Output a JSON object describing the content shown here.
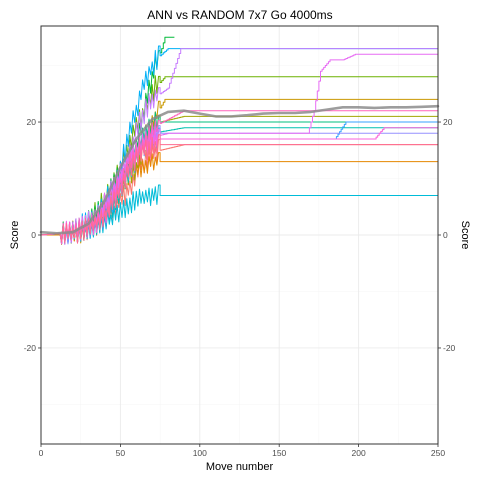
{
  "chart_data": {
    "type": "line",
    "title": "ANN vs RANDOM 7x7 Go 4000ms",
    "xlabel": "Move number",
    "ylabel": "Score",
    "ylabel_right": "Score",
    "xlim": [
      0,
      250
    ],
    "ylim": [
      -37,
      37
    ],
    "x_ticks": [
      0,
      50,
      100,
      150,
      200,
      250
    ],
    "x_tick_labels": [
      "0",
      "50",
      "100",
      "150",
      "200",
      "250"
    ],
    "y_ticks": [
      -20,
      0,
      20
    ],
    "y_tick_labels": [
      "-20",
      "0",
      "20"
    ],
    "grid": true,
    "legend": "none",
    "series": [
      {
        "color": "#F8766D",
        "jitter": 1.4,
        "points": [
          [
            0,
            0
          ],
          [
            15,
            0
          ],
          [
            25,
            0.5
          ],
          [
            35,
            1.5
          ],
          [
            45,
            4
          ],
          [
            55,
            8
          ],
          [
            62,
            12
          ],
          [
            68,
            14
          ],
          [
            75,
            15
          ],
          [
            90,
            16
          ],
          [
            110,
            16
          ],
          [
            150,
            16
          ],
          [
            190,
            16
          ],
          [
            230,
            16
          ],
          [
            250,
            16
          ]
        ]
      },
      {
        "color": "#E58700",
        "jitter": 1.2,
        "points": [
          [
            0,
            0
          ],
          [
            20,
            0
          ],
          [
            35,
            2
          ],
          [
            48,
            7
          ],
          [
            58,
            12
          ],
          [
            63,
            12
          ],
          [
            70,
            13
          ],
          [
            100,
            13
          ],
          [
            150,
            13
          ],
          [
            200,
            13
          ],
          [
            250,
            13
          ]
        ]
      },
      {
        "color": "#C99800",
        "jitter": 1.4,
        "points": [
          [
            0,
            0
          ],
          [
            25,
            0.5
          ],
          [
            38,
            3
          ],
          [
            48,
            8
          ],
          [
            55,
            13
          ],
          [
            62,
            16
          ],
          [
            70,
            20
          ],
          [
            78,
            24
          ],
          [
            85,
            24
          ],
          [
            120,
            24
          ],
          [
            200,
            24
          ],
          [
            250,
            24
          ]
        ]
      },
      {
        "color": "#A3A500",
        "jitter": 1.4,
        "points": [
          [
            0,
            0
          ],
          [
            22,
            0.5
          ],
          [
            35,
            2
          ],
          [
            45,
            6
          ],
          [
            55,
            10
          ],
          [
            60,
            12
          ],
          [
            68,
            18
          ],
          [
            75,
            20
          ],
          [
            90,
            21
          ],
          [
            150,
            21
          ],
          [
            200,
            21
          ],
          [
            250,
            21
          ]
        ]
      },
      {
        "color": "#6BB100",
        "jitter": 1.5,
        "points": [
          [
            0,
            0
          ],
          [
            18,
            0.5
          ],
          [
            30,
            2
          ],
          [
            40,
            6
          ],
          [
            50,
            12
          ],
          [
            58,
            18
          ],
          [
            65,
            22
          ],
          [
            72,
            26
          ],
          [
            78,
            28
          ],
          [
            95,
            28
          ],
          [
            150,
            28
          ],
          [
            200,
            28
          ],
          [
            250,
            28
          ]
        ]
      },
      {
        "color": "#00BA38",
        "jitter": 1.4,
        "points": [
          [
            0,
            0
          ],
          [
            20,
            0.5
          ],
          [
            32,
            3
          ],
          [
            42,
            7
          ],
          [
            52,
            12
          ],
          [
            60,
            16
          ],
          [
            65,
            22
          ],
          [
            72,
            30
          ],
          [
            76,
            33
          ],
          [
            78,
            35
          ],
          [
            84,
            35
          ]
        ]
      },
      {
        "color": "#00BF7D",
        "jitter": 1.3,
        "points": [
          [
            0,
            0
          ],
          [
            25,
            0.5
          ],
          [
            40,
            3
          ],
          [
            50,
            8
          ],
          [
            58,
            14
          ],
          [
            65,
            18
          ],
          [
            72,
            20
          ],
          [
            100,
            20
          ],
          [
            160,
            20
          ],
          [
            200,
            20
          ],
          [
            250,
            20
          ]
        ]
      },
      {
        "color": "#00C0AF",
        "jitter": 1.3,
        "points": [
          [
            0,
            0
          ],
          [
            25,
            0.5
          ],
          [
            38,
            2
          ],
          [
            48,
            6
          ],
          [
            56,
            12
          ],
          [
            62,
            16
          ],
          [
            70,
            18
          ],
          [
            90,
            19
          ],
          [
            140,
            19
          ],
          [
            200,
            19
          ],
          [
            250,
            19
          ]
        ]
      },
      {
        "color": "#00BCD8",
        "jitter": 1.3,
        "points": [
          [
            0,
            0
          ],
          [
            25,
            0.5
          ],
          [
            40,
            2
          ],
          [
            50,
            4
          ],
          [
            58,
            6
          ],
          [
            66,
            7
          ],
          [
            100,
            7
          ],
          [
            150,
            7
          ],
          [
            200,
            7
          ],
          [
            250,
            7
          ]
        ]
      },
      {
        "color": "#00B0F6",
        "jitter": 1.5,
        "points": [
          [
            0,
            0
          ],
          [
            20,
            0.5
          ],
          [
            35,
            3
          ],
          [
            45,
            8
          ],
          [
            52,
            14
          ],
          [
            58,
            20
          ],
          [
            64,
            26
          ],
          [
            72,
            31
          ],
          [
            80,
            33
          ],
          [
            100,
            33
          ],
          [
            160,
            33
          ],
          [
            200,
            33
          ],
          [
            250,
            33
          ]
        ]
      },
      {
        "color": "#35A2FF",
        "jitter": 1.3,
        "points": [
          [
            0,
            0
          ],
          [
            25,
            0.5
          ],
          [
            40,
            3
          ],
          [
            50,
            8
          ],
          [
            58,
            12
          ],
          [
            66,
            16
          ],
          [
            75,
            17
          ],
          [
            110,
            17
          ],
          [
            150,
            17
          ],
          [
            185,
            17
          ],
          [
            192,
            20
          ],
          [
            200,
            20
          ],
          [
            250,
            20
          ]
        ]
      },
      {
        "color": "#9590FF",
        "jitter": 1.3,
        "points": [
          [
            0,
            0
          ],
          [
            22,
            0.5
          ],
          [
            38,
            3
          ],
          [
            48,
            8
          ],
          [
            56,
            13
          ],
          [
            64,
            17
          ],
          [
            72,
            18
          ],
          [
            120,
            18
          ],
          [
            200,
            18
          ],
          [
            250,
            18
          ]
        ]
      },
      {
        "color": "#C77CFF",
        "jitter": 1.4,
        "points": [
          [
            0,
            0
          ],
          [
            20,
            0.5
          ],
          [
            35,
            3
          ],
          [
            45,
            8
          ],
          [
            55,
            14
          ],
          [
            62,
            20
          ],
          [
            70,
            24
          ],
          [
            80,
            26
          ],
          [
            88,
            33
          ],
          [
            100,
            33
          ],
          [
            200,
            33
          ],
          [
            250,
            33
          ]
        ]
      },
      {
        "color": "#E76BF3",
        "jitter": 1.4,
        "points": [
          [
            0,
            0
          ],
          [
            20,
            0.5
          ],
          [
            35,
            3
          ],
          [
            45,
            8
          ],
          [
            52,
            12
          ],
          [
            58,
            15
          ],
          [
            66,
            17
          ],
          [
            80,
            18
          ],
          [
            130,
            18
          ],
          [
            168,
            18
          ],
          [
            172,
            22
          ],
          [
            176,
            29
          ],
          [
            182,
            31
          ],
          [
            190,
            31
          ],
          [
            198,
            32
          ],
          [
            250,
            32
          ]
        ]
      },
      {
        "color": "#FA62DB",
        "jitter": 1.3,
        "points": [
          [
            0,
            0
          ],
          [
            25,
            0.5
          ],
          [
            40,
            3
          ],
          [
            50,
            9
          ],
          [
            58,
            14
          ],
          [
            65,
            16
          ],
          [
            75,
            17
          ],
          [
            120,
            17
          ],
          [
            180,
            17
          ],
          [
            210,
            17
          ],
          [
            216,
            19
          ],
          [
            250,
            19
          ]
        ]
      },
      {
        "color": "#FF62BC",
        "jitter": 1.3,
        "points": [
          [
            0,
            0
          ],
          [
            22,
            0.5
          ],
          [
            38,
            3
          ],
          [
            48,
            8
          ],
          [
            56,
            13
          ],
          [
            64,
            16
          ],
          [
            70,
            19
          ],
          [
            90,
            22
          ],
          [
            150,
            22
          ],
          [
            200,
            22
          ],
          [
            250,
            22
          ]
        ]
      },
      {
        "color": "#FF6C91",
        "jitter": 1.3,
        "points": [
          [
            0,
            0
          ],
          [
            25,
            0.5
          ],
          [
            40,
            3
          ],
          [
            50,
            8
          ],
          [
            58,
            13
          ],
          [
            65,
            15
          ],
          [
            75,
            16
          ],
          [
            120,
            16
          ],
          [
            200,
            16
          ],
          [
            250,
            16
          ]
        ]
      }
    ],
    "smooth": {
      "color": "#8c8c8c",
      "points": [
        [
          0,
          0.5
        ],
        [
          10,
          0.3
        ],
        [
          20,
          0.5
        ],
        [
          30,
          2
        ],
        [
          40,
          6
        ],
        [
          50,
          12
        ],
        [
          60,
          17
        ],
        [
          70,
          20.5
        ],
        [
          80,
          21.8
        ],
        [
          90,
          22
        ],
        [
          100,
          21.5
        ],
        [
          110,
          21
        ],
        [
          120,
          21
        ],
        [
          130,
          21.2
        ],
        [
          140,
          21.5
        ],
        [
          150,
          21.6
        ],
        [
          160,
          21.6
        ],
        [
          170,
          21.8
        ],
        [
          180,
          22.2
        ],
        [
          190,
          22.6
        ],
        [
          200,
          22.6
        ],
        [
          210,
          22.5
        ],
        [
          220,
          22.6
        ],
        [
          230,
          22.6
        ],
        [
          240,
          22.7
        ],
        [
          250,
          22.8
        ]
      ]
    }
  }
}
